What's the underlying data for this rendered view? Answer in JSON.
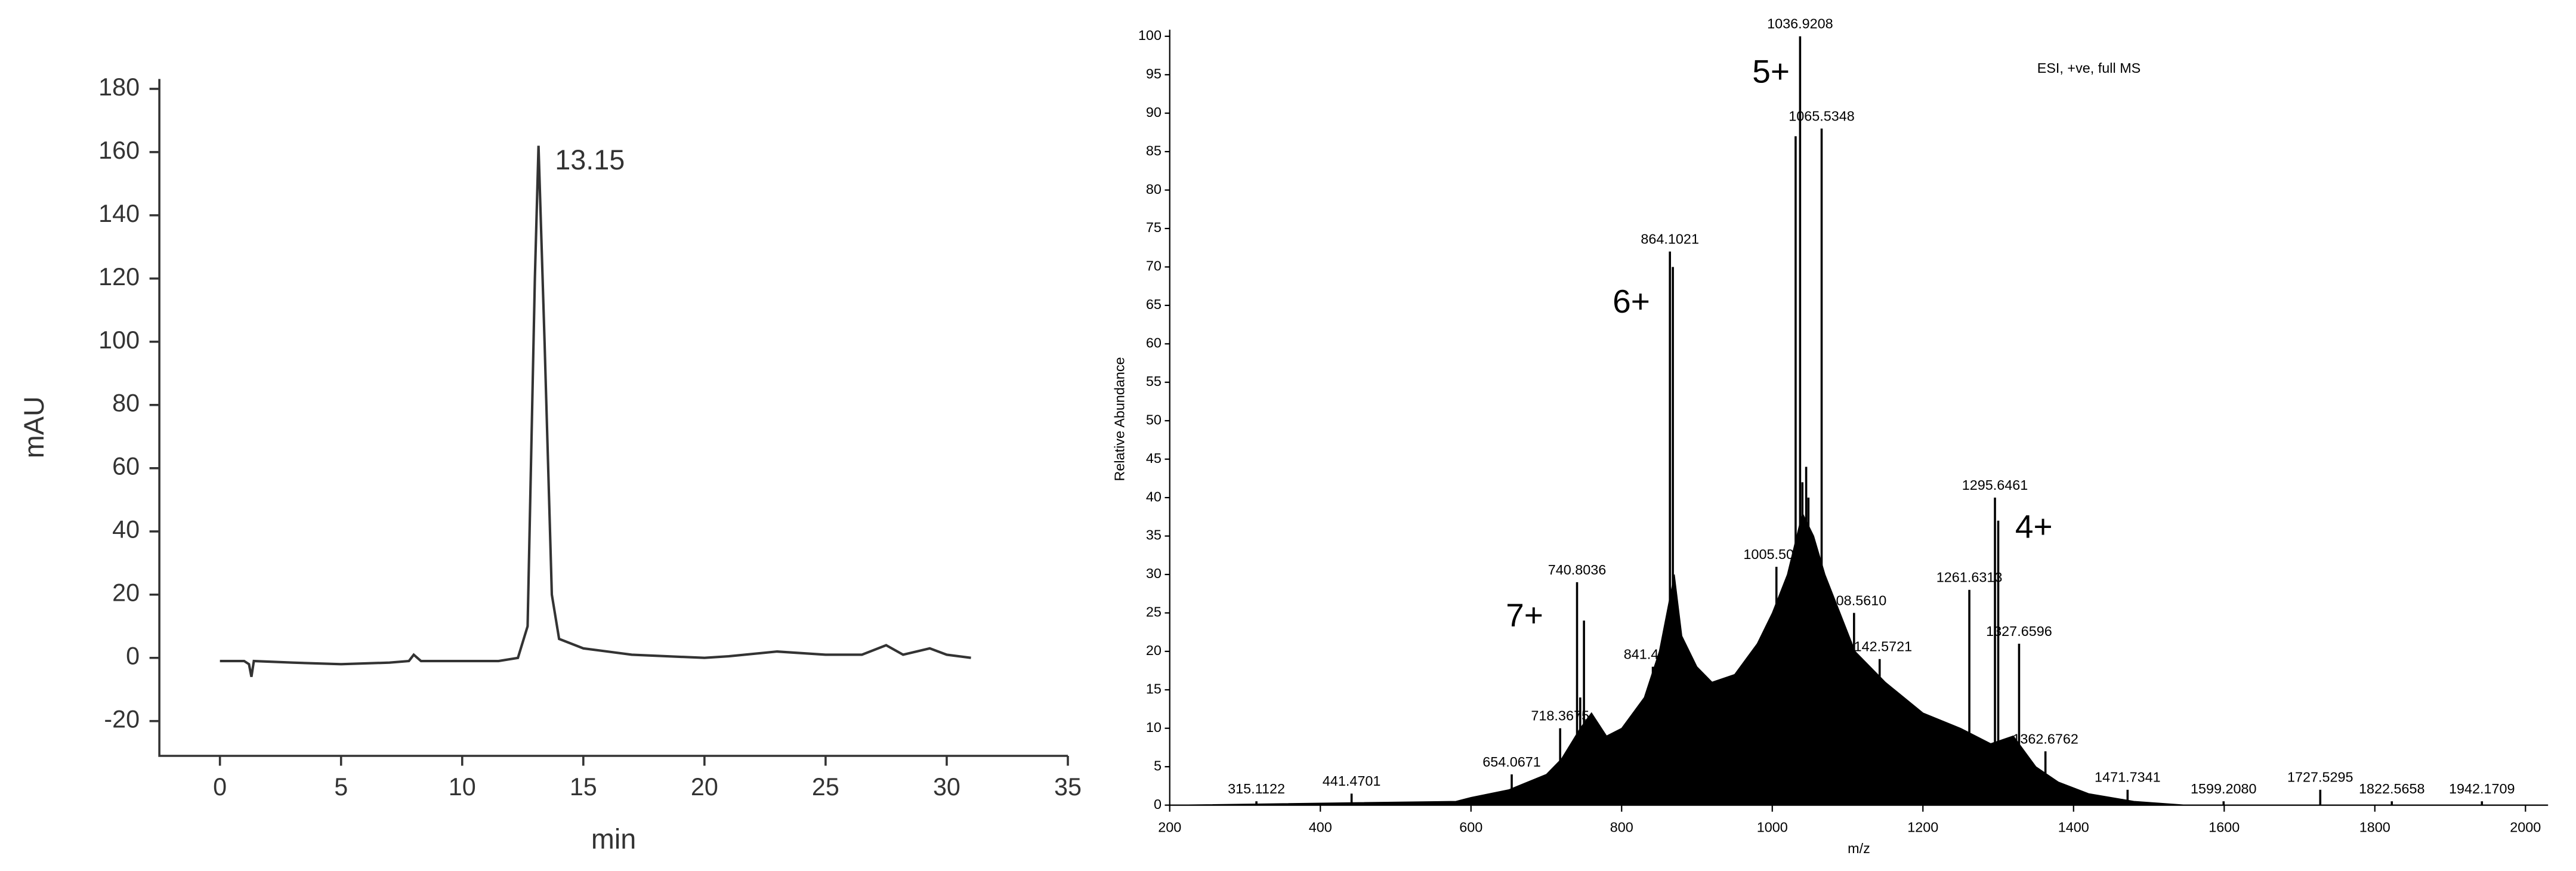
{
  "chart_data": [
    {
      "type": "line",
      "xlabel": "min",
      "ylabel": "mAU",
      "annotation": "13.15",
      "color": "#333333",
      "xlim": [
        -2.5,
        35
      ],
      "ylim": [
        -31,
        180
      ],
      "xticks": [
        0,
        5,
        10,
        15,
        20,
        25,
        30,
        35
      ],
      "yticks": [
        -20,
        0,
        20,
        40,
        60,
        80,
        100,
        120,
        140,
        160,
        180
      ],
      "x": [
        0,
        1,
        1.2,
        1.3,
        1.4,
        3,
        5,
        7,
        7.8,
        8,
        8.3,
        10,
        11.5,
        12.3,
        12.7,
        13.0,
        13.15,
        13.4,
        13.7,
        14,
        15,
        17,
        20,
        21,
        23,
        25,
        26.5,
        27.5,
        28.2,
        29.3,
        30,
        31
      ],
      "values": [
        -1,
        -1,
        -2,
        -6,
        -1,
        -1.5,
        -2,
        -1.5,
        -1,
        1,
        -1,
        -1,
        -1,
        0,
        10,
        120,
        162,
        100,
        20,
        6,
        3,
        1,
        0,
        0.5,
        2,
        1,
        1,
        4,
        1,
        3,
        1,
        0
      ]
    },
    {
      "type": "stem",
      "xlabel": "m/z",
      "ylabel": "Relative Abundance",
      "annotation": "ESI, +ve, full MS",
      "charge_labels": [
        "5+",
        "6+",
        "7+",
        "4+"
      ],
      "color": "#000000",
      "xlim": [
        200,
        2030
      ],
      "ylim": [
        0,
        100
      ],
      "xticks": [
        200,
        400,
        600,
        800,
        1000,
        1200,
        1400,
        1600,
        1800,
        2000
      ],
      "yticks": [
        0,
        5,
        10,
        15,
        20,
        25,
        30,
        35,
        40,
        45,
        50,
        55,
        60,
        65,
        70,
        75,
        80,
        85,
        90,
        95,
        100
      ],
      "series": [
        {
          "x": [
            1036.9208,
            1065.5348,
            864.1021,
            1295.6461,
            740.8036,
            1005.5062,
            1261.6313,
            1108.561,
            1327.6596,
            841.427,
            1142.5721,
            718.3675,
            1362.6762,
            654.0671,
            1471.7341,
            1599.208,
            1727.5295,
            1822.5658,
            1942.1709,
            441.4701,
            315.1122
          ],
          "x_labels": [
            "1036.9208",
            "1065.5348",
            "864.1021",
            "1295.6461",
            "740.8036",
            "1005.5062",
            "1261.6313",
            "1108.5610",
            "1327.6596",
            "841.4270",
            "1142.5721",
            "718.3675",
            "1362.6762",
            "654.0671",
            "1471.7341",
            "1599.2080",
            "1727.5295",
            "1822.5658",
            "1942.1709",
            "441.4701",
            "315.1122"
          ],
          "values": [
            100,
            88,
            72,
            40,
            29,
            31,
            28,
            25,
            21,
            18,
            19,
            10,
            7,
            4,
            2,
            0.5,
            2,
            0.5,
            0.5,
            1.5,
            0.5
          ]
        },
        {
          "x": [
            750,
            868,
            1031,
            1045,
            1048,
            1300,
            745,
            1040
          ],
          "values": [
            24,
            70,
            87,
            44,
            40,
            37,
            14,
            42
          ]
        }
      ],
      "area": {
        "x": [
          200,
          580,
          600,
          650,
          700,
          720,
          745,
          760,
          780,
          800,
          830,
          850,
          860,
          870,
          880,
          900,
          920,
          950,
          980,
          1000,
          1020,
          1040,
          1055,
          1070,
          1090,
          1110,
          1150,
          1200,
          1250,
          1290,
          1320,
          1350,
          1380,
          1420,
          1480,
          1550,
          2000
        ],
        "values": [
          0,
          0.5,
          1,
          2,
          4,
          6,
          10,
          12,
          9,
          10,
          14,
          20,
          25,
          30,
          22,
          18,
          16,
          17,
          21,
          25,
          30,
          38,
          35,
          30,
          25,
          20,
          16,
          12,
          10,
          8,
          9,
          5,
          3,
          1.5,
          0.5,
          0,
          0
        ]
      }
    }
  ]
}
